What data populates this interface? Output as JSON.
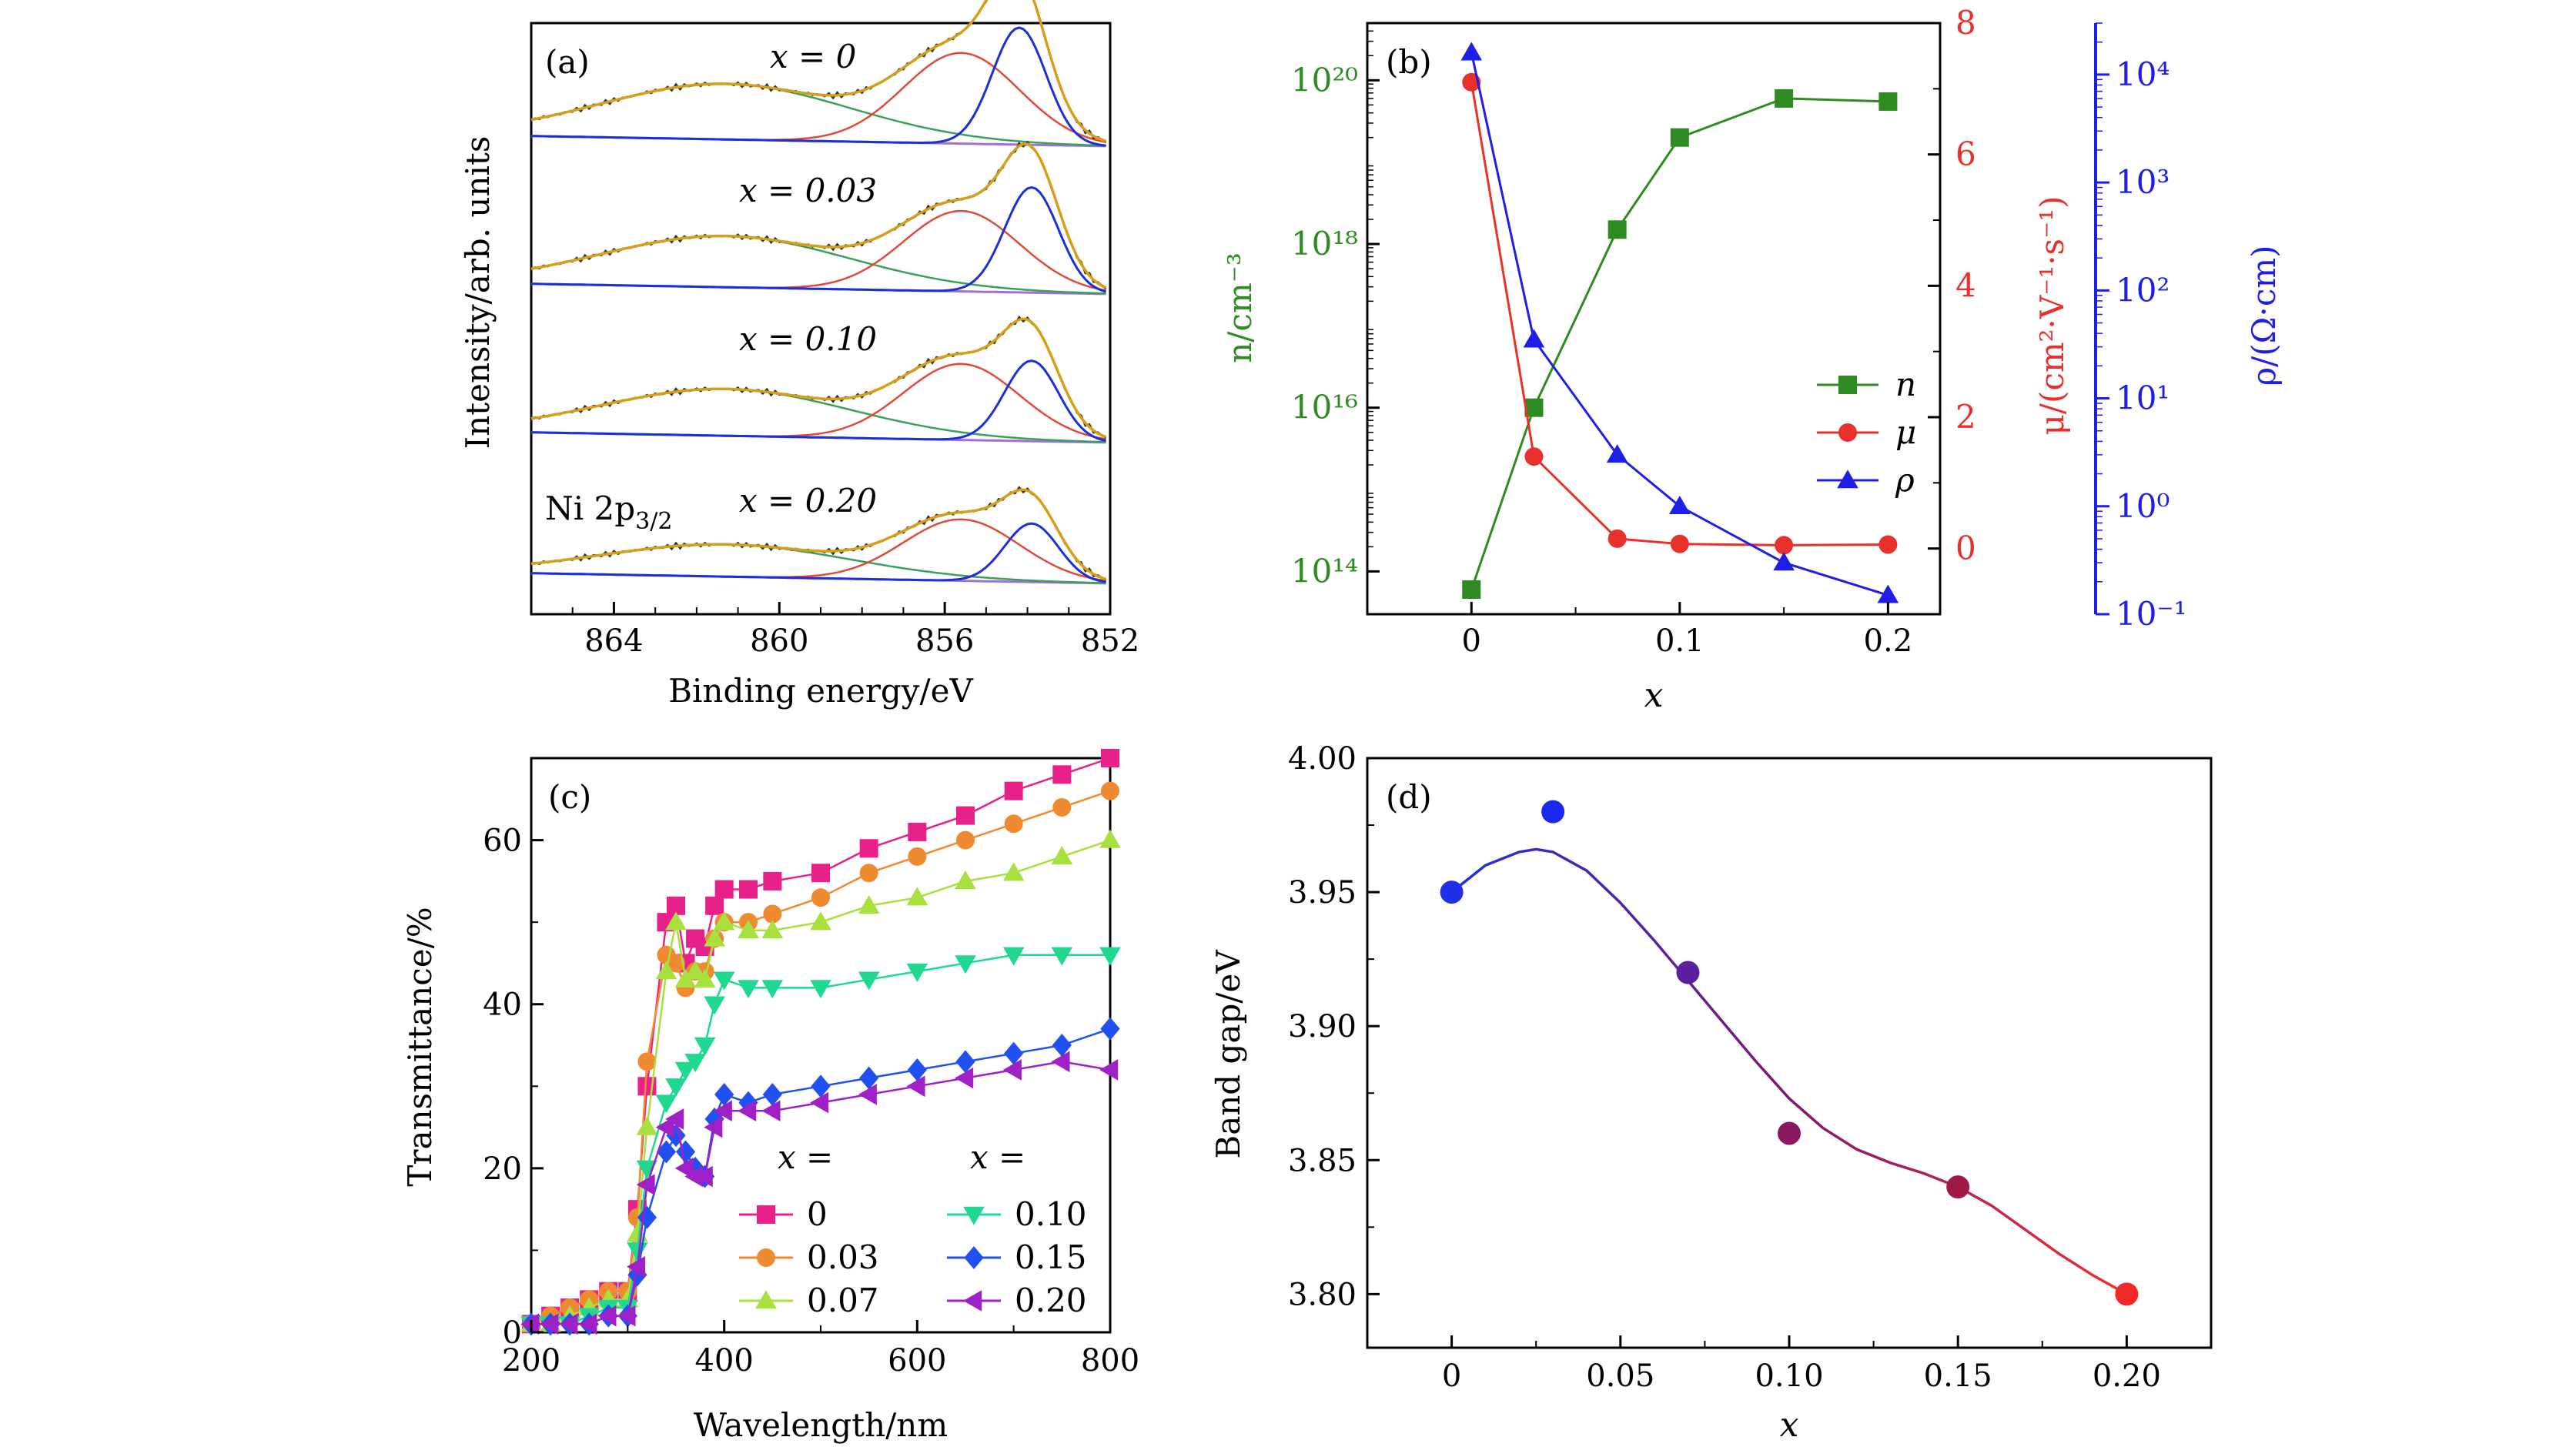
{
  "colors": {
    "green": "#2e8b22",
    "red": "#e8312c",
    "blue": "#1e1ee6",
    "xps_black": "#303030",
    "xps_fit": "#d4a01a",
    "xps_green": "#3aa05a",
    "xps_red": "#e04a3a",
    "xps_blue": "#1c2fd8",
    "xps_bg": "#a070d8",
    "t0": "#e8208a",
    "t003": "#f08a30",
    "t007": "#a8e040",
    "t010": "#20d890",
    "t015": "#2050f0",
    "t020": "#a020c8"
  },
  "chart_data": [
    {
      "panel": "a",
      "type": "line",
      "panel_label": "(a)",
      "xlabel": "Binding energy/eV",
      "ylabel": "Intensity/arb. units",
      "xlim": [
        866,
        852
      ],
      "xticks": [
        864,
        860,
        856,
        852
      ],
      "annotation": "Ni 2p",
      "annotation_sub": "3/2",
      "series": [
        {
          "name": "x = 0",
          "peaks": [
            {
              "center": 861.3,
              "height": 0.38
            },
            {
              "center": 855.6,
              "height": 0.62
            },
            {
              "center": 854.2,
              "height": 0.8
            }
          ]
        },
        {
          "name": "x = 0.03",
          "peaks": [
            {
              "center": 861.3,
              "height": 0.35
            },
            {
              "center": 855.6,
              "height": 0.55
            },
            {
              "center": 853.9,
              "height": 0.72
            }
          ]
        },
        {
          "name": "x = 0.10",
          "peaks": [
            {
              "center": 861.3,
              "height": 0.32
            },
            {
              "center": 855.6,
              "height": 0.52
            },
            {
              "center": 853.9,
              "height": 0.55
            }
          ]
        },
        {
          "name": "x = 0.20",
          "peaks": [
            {
              "center": 861.3,
              "height": 0.22
            },
            {
              "center": 855.6,
              "height": 0.42
            },
            {
              "center": 853.9,
              "height": 0.4
            }
          ]
        }
      ]
    },
    {
      "panel": "b",
      "type": "line",
      "panel_label": "(b)",
      "xlabel": "x",
      "xlim": [
        -0.05,
        0.225
      ],
      "xticks": [
        "0",
        "0.1",
        "0.2"
      ],
      "left_axis": {
        "label": "n/cm⁻³",
        "scale": "log",
        "ylim": [
          30000000000000.0,
          5e+20
        ],
        "ticks": [
          "10¹⁴",
          "10¹⁶",
          "10¹⁸",
          "10²⁰"
        ]
      },
      "right_axis_1": {
        "label": "μ/(cm²·V⁻¹·s⁻¹)",
        "scale": "linear",
        "ylim": [
          -1,
          8
        ],
        "ticks": [
          "0",
          "2",
          "4",
          "6",
          "8"
        ]
      },
      "right_axis_2": {
        "label": "ρ/(Ω·cm)",
        "scale": "log",
        "ylim": [
          0.1,
          30000
        ],
        "ticks": [
          "10⁻¹",
          "10⁰",
          "10¹",
          "10²",
          "10³",
          "10⁴"
        ]
      },
      "legend": [
        "n",
        "μ",
        "ρ"
      ],
      "legend_position": "right",
      "x": [
        0,
        0.03,
        0.07,
        0.1,
        0.15,
        0.2
      ],
      "series": [
        {
          "name": "n",
          "values": [
            60000000000000.0,
            1e+16,
            1.5e+18,
            2e+19,
            6e+19,
            5.5e+19
          ]
        },
        {
          "name": "μ",
          "values": [
            7.1,
            1.4,
            0.15,
            0.07,
            0.05,
            0.06
          ]
        },
        {
          "name": "ρ",
          "values": [
            16000,
            35,
            3,
            1,
            0.3,
            0.15
          ]
        }
      ]
    },
    {
      "panel": "c",
      "type": "line",
      "panel_label": "(c)",
      "xlabel": "Wavelength/nm",
      "ylabel": "Transmittance/%",
      "xlim": [
        200,
        800
      ],
      "ylim": [
        0,
        70
      ],
      "xticks": [
        "200",
        "400",
        "600",
        "800"
      ],
      "yticks": [
        "0",
        "20",
        "40",
        "60"
      ],
      "legend_header": "x =",
      "legend": [
        "0",
        "0.03",
        "0.07",
        "0.10",
        "0.15",
        "0.20"
      ],
      "series": [
        {
          "name": "0",
          "x": [
            200,
            220,
            240,
            260,
            280,
            300,
            310,
            320,
            340,
            350,
            360,
            370,
            380,
            390,
            400,
            425,
            450,
            500,
            550,
            600,
            650,
            700,
            750,
            800
          ],
          "values": [
            1,
            2,
            3,
            4,
            5,
            5,
            15,
            30,
            50,
            52,
            45,
            48,
            47,
            52,
            54,
            54,
            55,
            56,
            59,
            61,
            63,
            66,
            68,
            70
          ]
        },
        {
          "name": "0.03",
          "x": [
            200,
            220,
            240,
            260,
            280,
            300,
            310,
            320,
            340,
            350,
            360,
            370,
            380,
            390,
            400,
            425,
            450,
            500,
            550,
            600,
            650,
            700,
            750,
            800
          ],
          "values": [
            1,
            2,
            3,
            4,
            5,
            5,
            14,
            33,
            46,
            45,
            42,
            44,
            44,
            48,
            50,
            50,
            51,
            53,
            56,
            58,
            60,
            62,
            64,
            66
          ]
        },
        {
          "name": "0.07",
          "x": [
            200,
            220,
            240,
            260,
            280,
            300,
            310,
            320,
            340,
            350,
            360,
            370,
            380,
            390,
            400,
            425,
            450,
            500,
            550,
            600,
            650,
            700,
            750,
            800
          ],
          "values": [
            1,
            1,
            2,
            3,
            4,
            4,
            12,
            25,
            44,
            50,
            43,
            44,
            43,
            48,
            50,
            49,
            49,
            50,
            52,
            53,
            55,
            56,
            58,
            60
          ]
        },
        {
          "name": "0.10",
          "x": [
            200,
            220,
            240,
            260,
            280,
            300,
            310,
            320,
            340,
            350,
            360,
            370,
            380,
            390,
            400,
            425,
            450,
            500,
            550,
            600,
            650,
            700,
            750,
            800
          ],
          "values": [
            1,
            1,
            1,
            2,
            3,
            3,
            10,
            20,
            28,
            30,
            32,
            33,
            35,
            40,
            43,
            42,
            42,
            42,
            43,
            44,
            45,
            46,
            46,
            46
          ]
        },
        {
          "name": "0.15",
          "x": [
            200,
            220,
            240,
            260,
            280,
            300,
            310,
            320,
            340,
            350,
            360,
            370,
            380,
            390,
            400,
            425,
            450,
            500,
            550,
            600,
            650,
            700,
            750,
            800
          ],
          "values": [
            1,
            1,
            1,
            1,
            2,
            2,
            7,
            14,
            22,
            24,
            22,
            20,
            19,
            26,
            29,
            28,
            29,
            30,
            31,
            32,
            33,
            34,
            35,
            37
          ]
        },
        {
          "name": "0.20",
          "x": [
            200,
            220,
            240,
            260,
            280,
            300,
            310,
            320,
            340,
            350,
            360,
            370,
            380,
            390,
            400,
            425,
            450,
            500,
            550,
            600,
            650,
            700,
            750,
            800
          ],
          "values": [
            1,
            1,
            1,
            1,
            2,
            2,
            8,
            18,
            25,
            26,
            20,
            19,
            19,
            25,
            27,
            27,
            27,
            28,
            29,
            30,
            31,
            32,
            33,
            32
          ]
        }
      ]
    },
    {
      "panel": "d",
      "type": "scatter",
      "panel_label": "(d)",
      "xlabel": "x",
      "ylabel": "Band gap/eV",
      "xlim": [
        -0.025,
        0.225
      ],
      "ylim": [
        3.78,
        4.0
      ],
      "xticks": [
        "0",
        "0.05",
        "0.10",
        "0.15",
        "0.20"
      ],
      "yticks": [
        "3.80",
        "3.85",
        "3.90",
        "3.95",
        "4.00"
      ],
      "x": [
        0,
        0.03,
        0.07,
        0.1,
        0.15,
        0.2
      ],
      "values": [
        3.95,
        3.98,
        3.92,
        3.86,
        3.84,
        3.8
      ],
      "curve_x": [
        0,
        0.01,
        0.02,
        0.025,
        0.03,
        0.04,
        0.05,
        0.06,
        0.07,
        0.08,
        0.09,
        0.1,
        0.11,
        0.12,
        0.13,
        0.14,
        0.15,
        0.16,
        0.17,
        0.18,
        0.19,
        0.2
      ],
      "curve_y": [
        3.95,
        3.96,
        3.965,
        3.966,
        3.965,
        3.958,
        3.946,
        3.932,
        3.917,
        3.902,
        3.887,
        3.873,
        3.862,
        3.854,
        3.849,
        3.845,
        3.84,
        3.833,
        3.824,
        3.815,
        3.807,
        3.8
      ]
    }
  ]
}
